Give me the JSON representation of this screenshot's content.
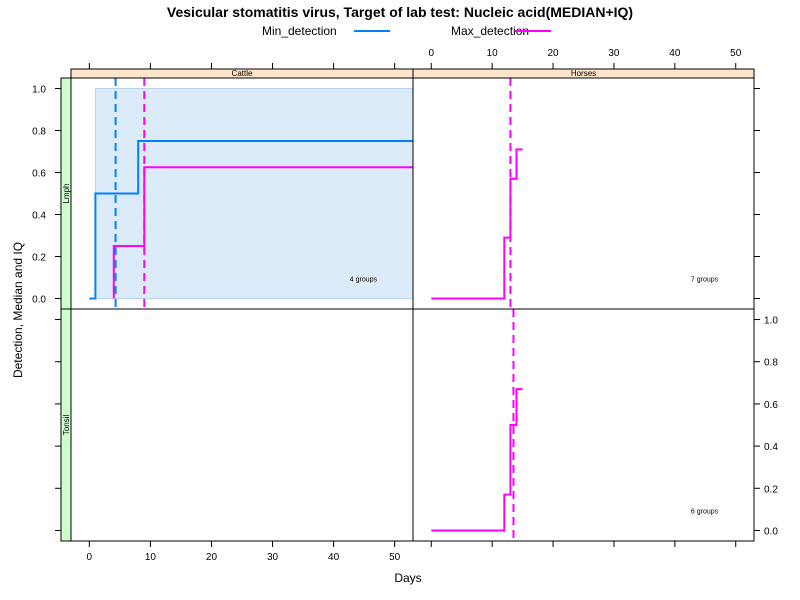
{
  "chart_data": {
    "type": "line",
    "title": "Vesicular stomatitis virus, Target of lab test: Nucleic acid(MEDIAN+IQ)",
    "xlabel": "Days",
    "ylabel": "Detection, Median and IQ",
    "legend": {
      "placement": "top-center",
      "entries": [
        {
          "name": "Min_detection",
          "color": "#0080ff"
        },
        {
          "name": "Max_detection",
          "color": "#ff00ff"
        }
      ]
    },
    "columns": [
      "Cattle",
      "Horses"
    ],
    "rows": [
      "Lmph",
      "Tonsil"
    ],
    "xlim": [
      -3,
      53
    ],
    "ylim": [
      -0.05,
      1.05
    ],
    "x_ticks": [
      0,
      10,
      20,
      30,
      40,
      50
    ],
    "y_ticks": [
      0.0,
      0.2,
      0.4,
      0.6,
      0.8,
      1.0
    ],
    "y_tick_labels": [
      "0.0",
      "0.2",
      "0.4",
      "0.6",
      "0.8",
      "1.0"
    ],
    "colors": {
      "min": "#0080ff",
      "max": "#ff00ff",
      "band": "#dcebfa",
      "strip_col": "#ffe5cc",
      "strip_row": "#ccffcc"
    },
    "panels": [
      {
        "column": "Cattle",
        "row": "Lmph",
        "groups_label": "4 groups",
        "band": {
          "x": [
            1,
            53
          ],
          "y": [
            0,
            1
          ]
        },
        "min_line": [
          [
            0,
            0
          ],
          [
            1,
            0
          ],
          [
            1,
            0.5
          ],
          [
            8,
            0.5
          ],
          [
            8,
            0.75
          ],
          [
            53,
            0.75
          ]
        ],
        "max_line": [
          [
            4,
            0
          ],
          [
            4,
            0.25
          ],
          [
            9,
            0.25
          ],
          [
            9,
            0.625
          ],
          [
            53,
            0.625
          ]
        ],
        "min_median_day": 4.3,
        "max_median_day": 9
      },
      {
        "column": "Horses",
        "row": "Lmph",
        "groups_label": "7 groups",
        "max_line": [
          [
            0,
            0
          ],
          [
            12,
            0
          ],
          [
            12,
            0.29
          ],
          [
            13,
            0.29
          ],
          [
            13,
            0.57
          ],
          [
            14,
            0.57
          ],
          [
            14,
            0.71
          ],
          [
            15,
            0.71
          ]
        ],
        "max_median_day": 13
      },
      {
        "column": "Cattle",
        "row": "Tonsil"
      },
      {
        "column": "Horses",
        "row": "Tonsil",
        "groups_label": "6 groups",
        "max_line": [
          [
            0,
            0
          ],
          [
            12,
            0
          ],
          [
            12,
            0.17
          ],
          [
            13,
            0.17
          ],
          [
            13,
            0.5
          ],
          [
            14,
            0.5
          ],
          [
            14,
            0.67
          ],
          [
            15,
            0.67
          ]
        ],
        "max_median_day": 13.5
      }
    ]
  }
}
